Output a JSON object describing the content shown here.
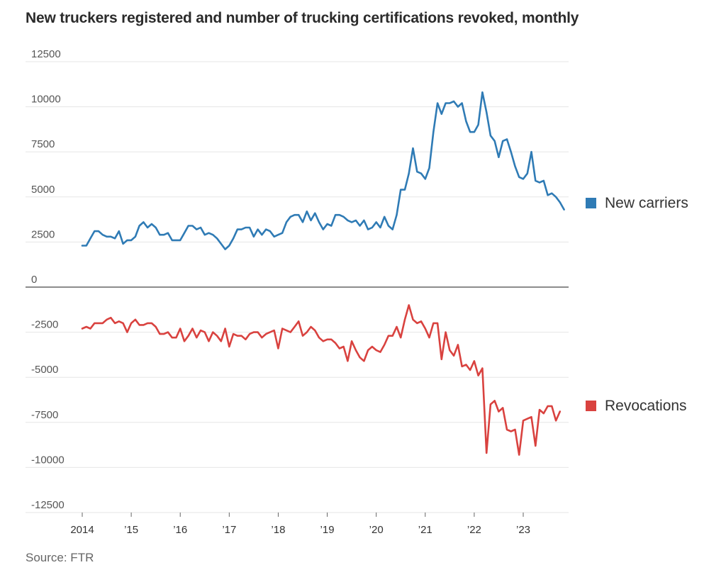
{
  "title": "New truckers registered and number of trucking certifications revoked, monthly",
  "source": "Source: FTR",
  "colors": {
    "new_carriers": "#2f7bb5",
    "revocations": "#d9423f",
    "grid": "#e6e6e6",
    "zero": "#8c8c8c"
  },
  "chart_data": {
    "type": "line",
    "title": "New truckers registered and number of trucking certifications revoked, monthly",
    "xlabel": "",
    "ylabel": "",
    "ylim": [
      -12500,
      12500
    ],
    "y_ticks": [
      12500,
      10000,
      7500,
      5000,
      2500,
      0,
      -2500,
      -5000,
      -7500,
      -10000,
      -12500
    ],
    "y_tick_labels": [
      "12500",
      "10000",
      "7500",
      "5000",
      "2500",
      "0",
      "-2500",
      "-5000",
      "-7500",
      "-10000",
      "-12500"
    ],
    "x_start": "2014-01",
    "x_ticks": [
      {
        "year": 2014,
        "label": "2014"
      },
      {
        "year": 2015,
        "label": "’15"
      },
      {
        "year": 2016,
        "label": "’16"
      },
      {
        "year": 2017,
        "label": "’17"
      },
      {
        "year": 2018,
        "label": "’18"
      },
      {
        "year": 2019,
        "label": "’19"
      },
      {
        "year": 2020,
        "label": "’20"
      },
      {
        "year": 2021,
        "label": "’21"
      },
      {
        "year": 2022,
        "label": "’22"
      },
      {
        "year": 2023,
        "label": "’23"
      }
    ],
    "grid": true,
    "series": [
      {
        "name": "New carriers",
        "legend": "New carriers",
        "color": "#2f7bb5",
        "values": [
          2300,
          2300,
          2700,
          3100,
          3100,
          2900,
          2800,
          2800,
          2700,
          3100,
          2400,
          2600,
          2600,
          2800,
          3400,
          3600,
          3300,
          3500,
          3300,
          2900,
          2900,
          3000,
          2600,
          2600,
          2600,
          3000,
          3400,
          3400,
          3200,
          3300,
          2900,
          3000,
          2900,
          2700,
          2400,
          2100,
          2300,
          2700,
          3200,
          3200,
          3300,
          3300,
          2800,
          3200,
          2900,
          3200,
          3100,
          2800,
          2900,
          3000,
          3600,
          3900,
          4000,
          4000,
          3600,
          4200,
          3700,
          4100,
          3600,
          3200,
          3500,
          3400,
          4000,
          4000,
          3900,
          3700,
          3600,
          3700,
          3400,
          3700,
          3200,
          3300,
          3600,
          3300,
          3900,
          3400,
          3200,
          4000,
          5400,
          5400,
          6300,
          7700,
          6400,
          6300,
          6000,
          6600,
          8600,
          10200,
          9600,
          10200,
          10200,
          10300,
          10000,
          10200,
          9200,
          8600,
          8600,
          9000,
          10800,
          9700,
          8400,
          8100,
          7200,
          8100,
          8200,
          7500,
          6700,
          6100,
          6000,
          6300,
          7500,
          5900,
          5800,
          5900,
          5100,
          5200,
          5000,
          4700,
          4300
        ],
        "last_index": 118
      },
      {
        "name": "Revocations",
        "legend": "Revocations",
        "color": "#d9423f",
        "values": [
          -2300,
          -2200,
          -2300,
          -2000,
          -2000,
          -2000,
          -1800,
          -1700,
          -2000,
          -1900,
          -2000,
          -2500,
          -2000,
          -1800,
          -2100,
          -2100,
          -2000,
          -2000,
          -2200,
          -2600,
          -2600,
          -2500,
          -2800,
          -2800,
          -2300,
          -3000,
          -2700,
          -2300,
          -2800,
          -2400,
          -2500,
          -3000,
          -2500,
          -2700,
          -3000,
          -2300,
          -3300,
          -2600,
          -2700,
          -2700,
          -2900,
          -2600,
          -2500,
          -2500,
          -2800,
          -2600,
          -2500,
          -2400,
          -3400,
          -2300,
          -2400,
          -2500,
          -2200,
          -1900,
          -2700,
          -2500,
          -2200,
          -2400,
          -2800,
          -3000,
          -2900,
          -2900,
          -3100,
          -3400,
          -3300,
          -4100,
          -3000,
          -3500,
          -3900,
          -4100,
          -3500,
          -3300,
          -3500,
          -3600,
          -3200,
          -2700,
          -2700,
          -2200,
          -2800,
          -1800,
          -1000,
          -1800,
          -2000,
          -1900,
          -2300,
          -2800,
          -2000,
          -2000,
          -4000,
          -2500,
          -3500,
          -3800,
          -3200,
          -4400,
          -4300,
          -4600,
          -4100,
          -4900,
          -4500,
          -9200,
          -6500,
          -6300,
          -6900,
          -6700,
          -7900,
          -8000,
          -7900,
          -9300,
          -7400,
          -7300,
          -7200,
          -8800,
          -6800,
          -7000,
          -6600,
          -6600,
          -7400,
          -6900
        ],
        "last_index": 117
      }
    ]
  }
}
